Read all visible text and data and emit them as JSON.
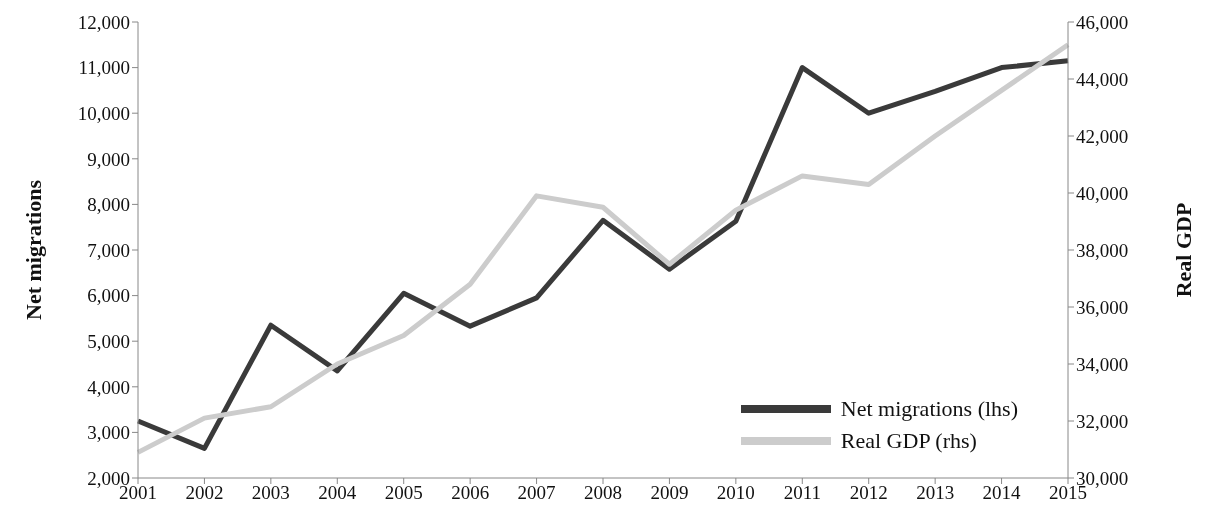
{
  "chart_data": {
    "type": "line",
    "ylabel": "Net migrations",
    "y2label": "Real GDP",
    "categories": [
      "2001",
      "2002",
      "2003",
      "2004",
      "2005",
      "2006",
      "2007",
      "2008",
      "2009",
      "2010",
      "2011",
      "2012",
      "2013",
      "2014",
      "2015"
    ],
    "series": [
      {
        "name": "Net migrations (lhs)",
        "color": "#3a3a3a",
        "values": [
          3250,
          2650,
          5350,
          4350,
          6050,
          5330,
          5950,
          7650,
          6580,
          7630,
          11000,
          10000,
          10480,
          11000,
          11150
        ]
      },
      {
        "name": "Real GDP (rhs)",
        "color": "#cccccc",
        "axis": "y2",
        "values": [
          30900,
          32100,
          32500,
          34000,
          35000,
          36800,
          39900,
          39500,
          37500,
          39400,
          40600,
          40300,
          42000,
          43600,
          45200
        ]
      }
    ],
    "ylim": [
      2000,
      12000
    ],
    "yticks": [
      {
        "value": 2000,
        "label": "2,000"
      },
      {
        "value": 3000,
        "label": "3,000"
      },
      {
        "value": 4000,
        "label": "4,000"
      },
      {
        "value": 5000,
        "label": "5,000"
      },
      {
        "value": 6000,
        "label": "6,000"
      },
      {
        "value": 7000,
        "label": "7,000"
      },
      {
        "value": 8000,
        "label": "8,000"
      },
      {
        "value": 9000,
        "label": "9,000"
      },
      {
        "value": 10000,
        "label": "10,000"
      },
      {
        "value": 11000,
        "label": "11,000"
      },
      {
        "value": 12000,
        "label": "12,000"
      }
    ],
    "y2lim": [
      30000,
      46000
    ],
    "y2ticks": [
      {
        "value": 30000,
        "label": "30,000"
      },
      {
        "value": 32000,
        "label": "32,000"
      },
      {
        "value": 34000,
        "label": "34,000"
      },
      {
        "value": 36000,
        "label": "36,000"
      },
      {
        "value": 38000,
        "label": "38,000"
      },
      {
        "value": 40000,
        "label": "40,000"
      },
      {
        "value": 42000,
        "label": "42,000"
      },
      {
        "value": 44000,
        "label": "44,000"
      },
      {
        "value": 46000,
        "label": "46,000"
      }
    ],
    "grid": false,
    "legend": "bottom right",
    "marker": "none",
    "line_style": "solid"
  }
}
